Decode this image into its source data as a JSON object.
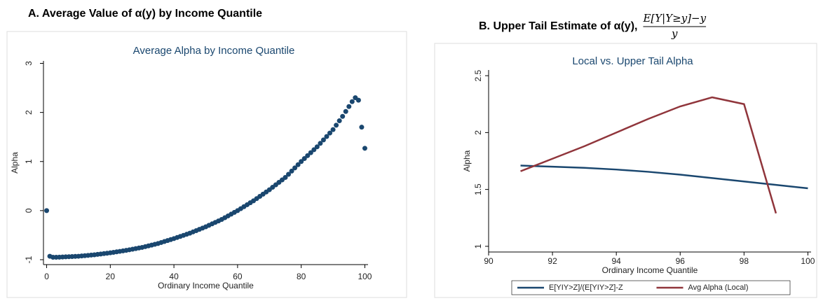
{
  "chart_data": [
    {
      "type": "scatter",
      "heading": "A. Average Value of α(y) by Income Quantile",
      "title": "Average Alpha by Income Quantile",
      "x_label": "Ordinary Income Quantile",
      "y_label": "Alpha",
      "color": "#1a476f",
      "x": [
        0,
        1,
        2,
        3,
        4,
        5,
        6,
        7,
        8,
        9,
        10,
        11,
        12,
        13,
        14,
        15,
        16,
        17,
        18,
        19,
        20,
        21,
        22,
        23,
        24,
        25,
        26,
        27,
        28,
        29,
        30,
        31,
        32,
        33,
        34,
        35,
        36,
        37,
        38,
        39,
        40,
        41,
        42,
        43,
        44,
        45,
        46,
        47,
        48,
        49,
        50,
        51,
        52,
        53,
        54,
        55,
        56,
        57,
        58,
        59,
        60,
        61,
        62,
        63,
        64,
        65,
        66,
        67,
        68,
        69,
        70,
        71,
        72,
        73,
        74,
        75,
        76,
        77,
        78,
        79,
        80,
        81,
        82,
        83,
        84,
        85,
        86,
        87,
        88,
        89,
        90,
        91,
        92,
        93,
        94,
        95,
        96,
        97,
        98,
        99,
        100
      ],
      "values": [
        0,
        -0.93,
        -0.95,
        -0.95,
        -0.948,
        -0.945,
        -0.942,
        -0.939,
        -0.936,
        -0.933,
        -0.93,
        -0.924,
        -0.918,
        -0.912,
        -0.906,
        -0.9,
        -0.892,
        -0.884,
        -0.876,
        -0.868,
        -0.86,
        -0.85,
        -0.84,
        -0.83,
        -0.82,
        -0.81,
        -0.798,
        -0.786,
        -0.774,
        -0.762,
        -0.75,
        -0.734,
        -0.718,
        -0.702,
        -0.686,
        -0.67,
        -0.65,
        -0.63,
        -0.61,
        -0.59,
        -0.57,
        -0.548,
        -0.526,
        -0.504,
        -0.482,
        -0.46,
        -0.434,
        -0.408,
        -0.382,
        -0.356,
        -0.33,
        -0.3,
        -0.27,
        -0.24,
        -0.21,
        -0.18,
        -0.144,
        -0.108,
        -0.072,
        -0.036,
        0,
        0.04,
        0.08,
        0.12,
        0.16,
        0.2,
        0.245,
        0.29,
        0.335,
        0.38,
        0.425,
        0.475,
        0.525,
        0.575,
        0.625,
        0.675,
        0.74,
        0.805,
        0.87,
        0.935,
        1.0,
        1.06,
        1.12,
        1.18,
        1.24,
        1.3,
        1.37,
        1.44,
        1.51,
        1.58,
        1.65,
        1.74,
        1.83,
        1.92,
        2.02,
        2.12,
        2.22,
        2.3,
        2.25,
        1.7,
        1.27
      ],
      "xlim": [
        -1,
        101
      ],
      "xticks": [
        0,
        20,
        40,
        60,
        80,
        100
      ],
      "ylim": [
        -1.1,
        3.05
      ],
      "yticks": [
        -1,
        0,
        1,
        2,
        3
      ]
    },
    {
      "type": "line",
      "heading": "B. Upper Tail Estimate of α(y),",
      "heading_fraction": {
        "numerator": "E[Y|Y≥y]−y",
        "denominator": "y"
      },
      "title": "Local vs. Upper Tail Alpha",
      "x_label": "Ordinary Income Quantile",
      "y_label": "Alpha",
      "x": [
        91,
        92,
        93,
        94,
        95,
        96,
        97,
        98,
        99,
        100
      ],
      "series": [
        {
          "name": "E[YIY>Z]/(E[YIY>Z]-Z",
          "color": "#1a476f",
          "values": [
            1.71,
            1.7,
            1.69,
            1.675,
            1.655,
            1.63,
            1.6,
            1.57,
            1.54,
            1.51
          ]
        },
        {
          "name": "Avg Alpha (Local)",
          "color": "#90353b",
          "values": [
            1.66,
            1.77,
            1.88,
            2.0,
            2.12,
            2.23,
            2.31,
            2.25,
            1.29,
            null
          ]
        }
      ],
      "xlim": [
        90,
        100.1
      ],
      "xticks": [
        90,
        92,
        94,
        96,
        98,
        100
      ],
      "ylim": [
        0.95,
        2.55
      ],
      "yticks": [
        1,
        1.5,
        2,
        2.5
      ],
      "legend": "bottom"
    }
  ]
}
